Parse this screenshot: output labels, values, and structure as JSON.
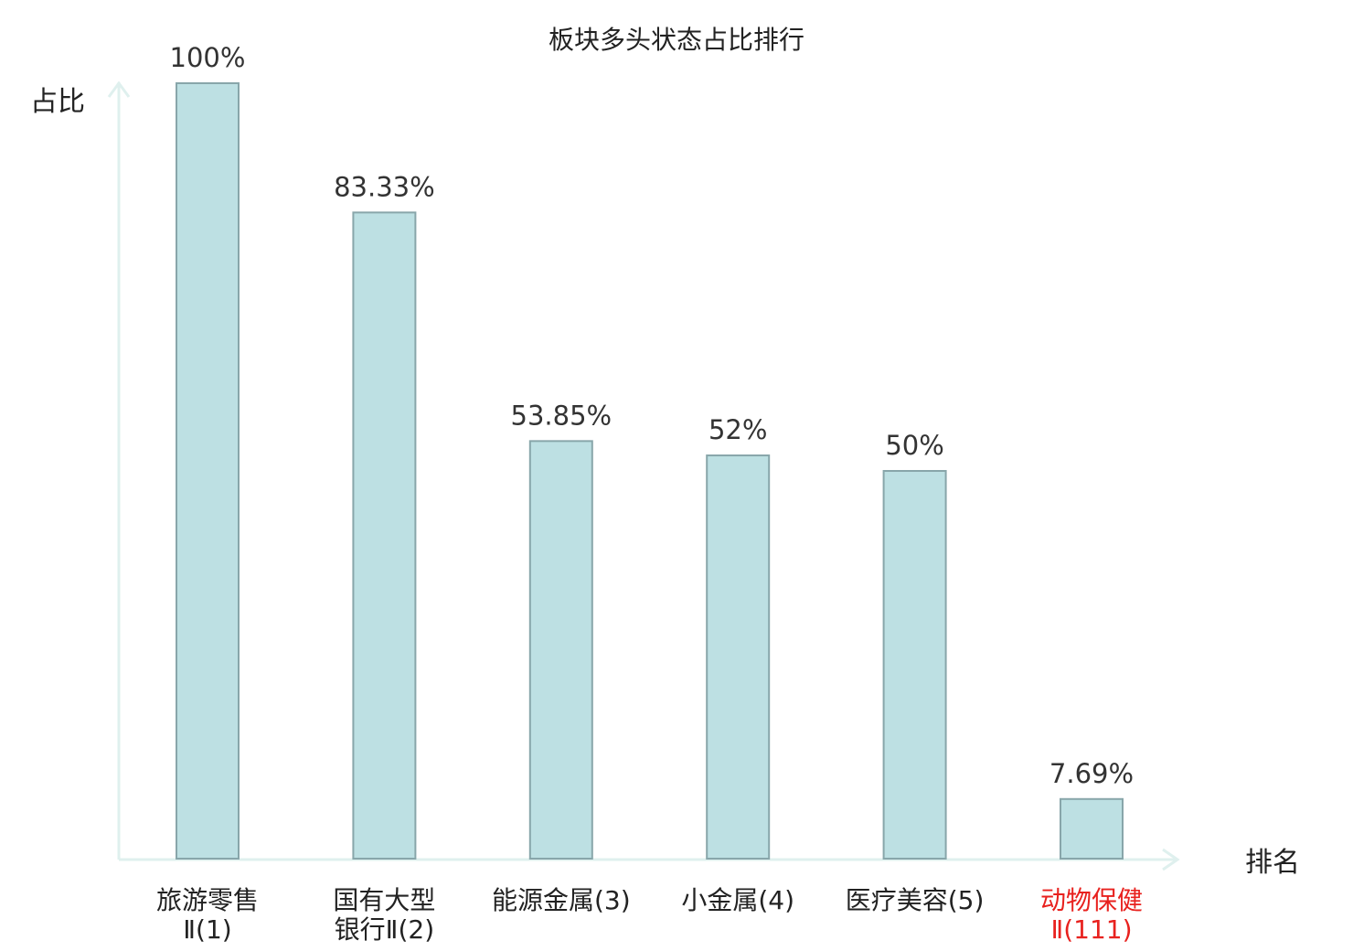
{
  "chart_data": {
    "type": "bar",
    "title": "板块多头状态占比排行",
    "ylabel": "占比",
    "xlabel": "排名",
    "ylim": [
      0,
      100
    ],
    "grid": false,
    "categories": [
      {
        "line1": "旅游零售",
        "line2": "Ⅱ(1)",
        "highlight": false
      },
      {
        "line1": "国有大型",
        "line2": "银行Ⅱ(2)",
        "highlight": false
      },
      {
        "line1": "能源金属(3)",
        "line2": "",
        "highlight": false
      },
      {
        "line1": "小金属(4)",
        "line2": "",
        "highlight": false
      },
      {
        "line1": "医疗美容(5)",
        "line2": "",
        "highlight": false
      },
      {
        "line1": "动物保健",
        "line2": "Ⅱ(111)",
        "highlight": true
      }
    ],
    "values": [
      100,
      83.33,
      53.85,
      52,
      50,
      7.69
    ],
    "value_labels": [
      "100%",
      "83.33%",
      "53.85%",
      "52%",
      "50%",
      "7.69%"
    ]
  },
  "colors": {
    "bar_fill": "#bde0e3",
    "bar_stroke": "#88a6aa",
    "axis": "#dff0ee",
    "text": "#222222",
    "highlight": "#e8211e"
  }
}
